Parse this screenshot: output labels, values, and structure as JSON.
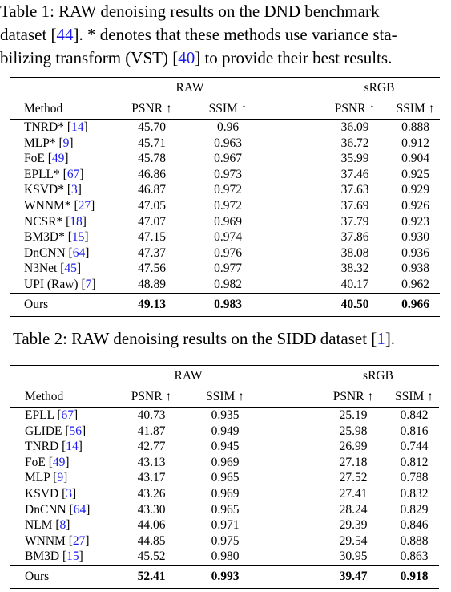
{
  "table1": {
    "caption": {
      "line1": "Table 1: RAW denoising results on the DND benchmark",
      "line2_pre": "dataset [",
      "line2_cite": "44",
      "line2_post": "]. * denotes that these methods use variance sta-",
      "line3_pre": "bilizing transform (VST) [",
      "line3_cite": "40",
      "line3_post": "] to provide their best results."
    },
    "group_raw": "RAW",
    "group_srgb": "sRGB",
    "headers": [
      "Method",
      "PSNR ↑",
      "SSIM ↑",
      "PSNR ↑",
      "SSIM ↑"
    ],
    "rows": [
      {
        "name": "TNRD*",
        "cite": "14",
        "v": [
          "45.70",
          "0.96",
          "36.09",
          "0.888"
        ]
      },
      {
        "name": "MLP*",
        "cite": "9",
        "v": [
          "45.71",
          "0.963",
          "36.72",
          "0.912"
        ]
      },
      {
        "name": "FoE",
        "cite": "49",
        "v": [
          "45.78",
          "0.967",
          "35.99",
          "0.904"
        ]
      },
      {
        "name": "EPLL*",
        "cite": "67",
        "v": [
          "46.86",
          "0.973",
          "37.46",
          "0.925"
        ]
      },
      {
        "name": "KSVD*",
        "cite": "3",
        "v": [
          "46.87",
          "0.972",
          "37.63",
          "0.929"
        ]
      },
      {
        "name": "WNNM*",
        "cite": "27",
        "v": [
          "47.05",
          "0.972",
          "37.69",
          "0.926"
        ]
      },
      {
        "name": "NCSR*",
        "cite": "18",
        "v": [
          "47.07",
          "0.969",
          "37.79",
          "0.923"
        ]
      },
      {
        "name": "BM3D*",
        "cite": "15",
        "v": [
          "47.15",
          "0.974",
          "37.86",
          "0.930"
        ]
      },
      {
        "name": "DnCNN",
        "cite": "64",
        "v": [
          "47.37",
          "0.976",
          "38.08",
          "0.936"
        ]
      },
      {
        "name": "N3Net",
        "cite": "45",
        "v": [
          "47.56",
          "0.977",
          "38.32",
          "0.938"
        ]
      },
      {
        "name": "UPI (Raw)",
        "cite": "7",
        "v": [
          "48.89",
          "0.982",
          "40.17",
          "0.962"
        ]
      }
    ],
    "ours": {
      "name": "Ours",
      "v": [
        "49.13",
        "0.983",
        "40.50",
        "0.966"
      ]
    }
  },
  "table2": {
    "caption": {
      "pre": "Table 2: RAW denoising results on the SIDD dataset [",
      "cite": "1",
      "post": "]."
    },
    "group_raw": "RAW",
    "group_srgb": "sRGB",
    "headers": [
      "Method",
      "PSNR ↑",
      "SSIM ↑",
      "PSNR ↑",
      "SSIM ↑"
    ],
    "rows": [
      {
        "name": "EPLL",
        "cite": "67",
        "v": [
          "40.73",
          "0.935",
          "25.19",
          "0.842"
        ]
      },
      {
        "name": "GLIDE",
        "cite": "56",
        "v": [
          "41.87",
          "0.949",
          "25.98",
          "0.816"
        ]
      },
      {
        "name": "TNRD",
        "cite": "14",
        "v": [
          "42.77",
          "0.945",
          "26.99",
          "0.744"
        ]
      },
      {
        "name": "FoE",
        "cite": "49",
        "v": [
          "43.13",
          "0.969",
          "27.18",
          "0.812"
        ]
      },
      {
        "name": "MLP",
        "cite": "9",
        "v": [
          "43.17",
          "0.965",
          "27.52",
          "0.788"
        ]
      },
      {
        "name": "KSVD",
        "cite": "3",
        "v": [
          "43.26",
          "0.969",
          "27.41",
          "0.832"
        ]
      },
      {
        "name": "DnCNN",
        "cite": "64",
        "v": [
          "43.30",
          "0.965",
          "28.24",
          "0.829"
        ]
      },
      {
        "name": "NLM",
        "cite": "8",
        "v": [
          "44.06",
          "0.971",
          "29.39",
          "0.846"
        ]
      },
      {
        "name": "WNNM",
        "cite": "27",
        "v": [
          "44.85",
          "0.975",
          "29.54",
          "0.888"
        ]
      },
      {
        "name": "BM3D",
        "cite": "15",
        "v": [
          "45.52",
          "0.980",
          "30.95",
          "0.863"
        ]
      }
    ],
    "ours": {
      "name": "Ours",
      "v": [
        "52.41",
        "0.993",
        "39.47",
        "0.918"
      ]
    }
  },
  "colors": {
    "citation": "#1a1aee",
    "text": "#000000"
  }
}
